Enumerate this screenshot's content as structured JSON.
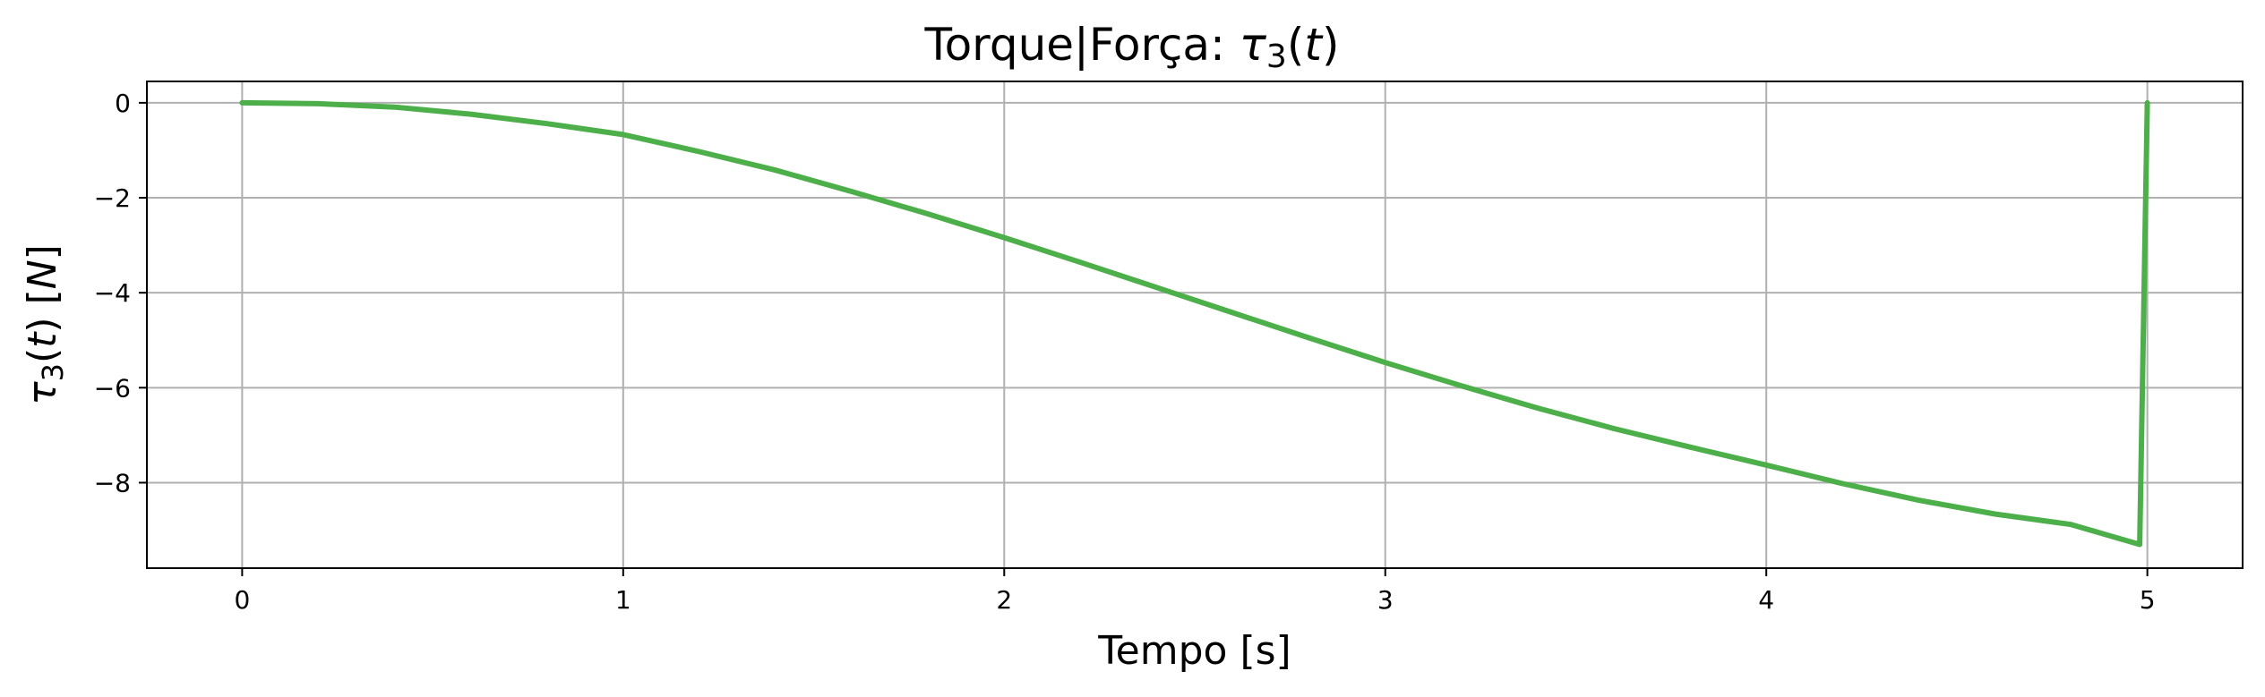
{
  "chart_data": {
    "type": "line",
    "title": {
      "prefix": "Torque|Força: ",
      "sym": "τ",
      "sub": "3",
      "open": "(",
      "var": "t",
      "close": ")"
    },
    "xlabel": "Tempo [s]",
    "ylabel": {
      "sym": "τ",
      "sub": "3",
      "open": "(",
      "var": "t",
      "mid": ") [",
      "unit": "N",
      "close": "]"
    },
    "xlim": [
      -0.25,
      5.25
    ],
    "ylim": [
      -9.8,
      0.45
    ],
    "xticks": [
      0,
      1,
      2,
      3,
      4,
      5
    ],
    "xtick_labels": [
      "0",
      "1",
      "2",
      "3",
      "4",
      "5"
    ],
    "yticks": [
      0,
      -2,
      -4,
      -6,
      -8
    ],
    "ytick_labels": [
      "0",
      "−2",
      "−4",
      "−6",
      "−8"
    ],
    "grid": true,
    "series": [
      {
        "color": "#4daf4a",
        "x": [
          0,
          0.2,
          0.4,
          0.6,
          0.8,
          1.0,
          1.2,
          1.4,
          1.6,
          1.8,
          2.0,
          2.2,
          2.4,
          2.6,
          2.8,
          3.0,
          3.2,
          3.4,
          3.6,
          3.8,
          4.0,
          4.2,
          4.4,
          4.6,
          4.8,
          4.98,
          5.0
        ],
        "y": [
          0,
          -0.02,
          -0.09,
          -0.24,
          -0.44,
          -0.67,
          -1.03,
          -1.42,
          -1.87,
          -2.34,
          -2.84,
          -3.36,
          -3.89,
          -4.42,
          -4.95,
          -5.47,
          -5.96,
          -6.43,
          -6.86,
          -7.25,
          -7.63,
          -8.02,
          -8.37,
          -8.66,
          -8.88,
          -9.3,
          0
        ]
      }
    ]
  }
}
